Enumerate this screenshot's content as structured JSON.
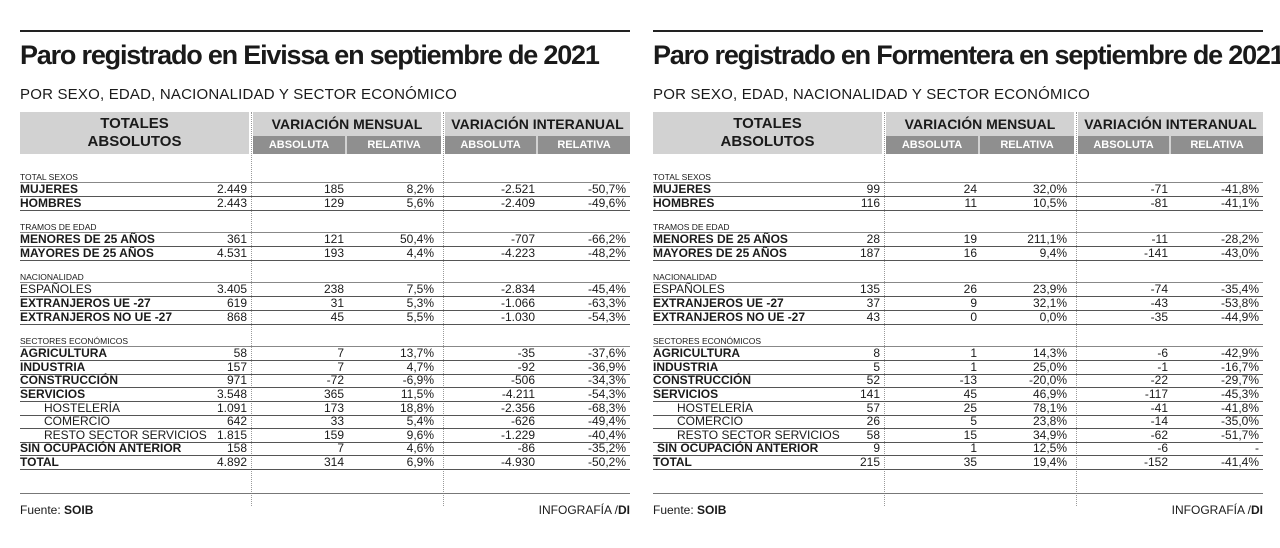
{
  "panels": [
    {
      "title": "Paro registrado en Eivissa en septiembre de 2021",
      "subtitle": "POR SEXO, EDAD, NACIONALIDAD Y SECTOR ECONÓMICO",
      "header": {
        "totales_l1": "TOTALES",
        "totales_l2": "ABSOLUTOS",
        "mensual": "VARIACIÓN MENSUAL",
        "interanual": "VARIACIÓN INTERANUAL",
        "absoluta": "ABSOLUTA",
        "relativa": "RELATIVA"
      },
      "rows": [
        {
          "type": "cat",
          "label": "TOTAL SEXOS"
        },
        {
          "type": "row",
          "style": "bold",
          "label": "MUJERES",
          "v": [
            "2.449",
            "185",
            "8,2%",
            "-2.521",
            "-50,7%"
          ]
        },
        {
          "type": "row",
          "style": "bold",
          "label": "HOMBRES",
          "v": [
            "2.443",
            "129",
            "5,6%",
            "-2.409",
            "-49,6%"
          ]
        },
        {
          "type": "cat",
          "label": "TRAMOS DE EDAD"
        },
        {
          "type": "row",
          "style": "bold",
          "label": "MENORES DE 25 AÑOS",
          "v": [
            "361",
            "121",
            "50,4%",
            "-707",
            "-66,2%"
          ]
        },
        {
          "type": "row",
          "style": "bold",
          "label": "MAYORES DE 25 AÑOS",
          "v": [
            "4.531",
            "193",
            "4,4%",
            "-4.223",
            "-48,2%"
          ]
        },
        {
          "type": "cat",
          "label": "NACIONALIDAD"
        },
        {
          "type": "row",
          "style": "plain",
          "label": "ESPAÑOLES",
          "v": [
            "3.405",
            "238",
            "7,5%",
            "-2.834",
            "-45,4%"
          ]
        },
        {
          "type": "row",
          "style": "bold",
          "label": "EXTRANJEROS UE -27",
          "v": [
            "619",
            "31",
            "5,3%",
            "-1.066",
            "-63,3%"
          ]
        },
        {
          "type": "row",
          "style": "bold",
          "label": "EXTRANJEROS NO UE -27",
          "v": [
            "868",
            "45",
            "5,5%",
            "-1.030",
            "-54,3%"
          ]
        },
        {
          "type": "cat",
          "label": "SECTORES ECONÓMICOS"
        },
        {
          "type": "row",
          "style": "bold",
          "label": "AGRICULTURA",
          "v": [
            "58",
            "7",
            "13,7%",
            "-35",
            "-37,6%"
          ]
        },
        {
          "type": "row",
          "style": "bold",
          "label": "INDUSTRIA",
          "v": [
            "157",
            "7",
            "4,7%",
            "-92",
            "-36,9%"
          ]
        },
        {
          "type": "row",
          "style": "bold",
          "label": "CONSTRUCCIÓN",
          "v": [
            "971",
            "-72",
            "-6,9%",
            "-506",
            "-34,3%"
          ]
        },
        {
          "type": "row",
          "style": "bold",
          "label": "SERVICIOS",
          "v": [
            "3.548",
            "365",
            "11,5%",
            "-4.211",
            "-54,3%"
          ]
        },
        {
          "type": "row",
          "style": "sub",
          "label": "HOSTELERÍA",
          "v": [
            "1.091",
            "173",
            "18,8%",
            "-2.356",
            "-68,3%"
          ]
        },
        {
          "type": "row",
          "style": "sub",
          "label": "COMERCIO",
          "v": [
            "642",
            "33",
            "5,4%",
            "-626",
            "-49,4%"
          ]
        },
        {
          "type": "row",
          "style": "sub",
          "label": "RESTO SECTOR SERVICIOS",
          "v": [
            "1.815",
            "159",
            "9,6%",
            "-1.229",
            "-40,4%"
          ]
        },
        {
          "type": "row",
          "style": "bold",
          "label": "SIN OCUPACIÓN ANTERIOR",
          "v": [
            "158",
            "7",
            "4,6%",
            "-86",
            "-35,2%"
          ]
        },
        {
          "type": "row",
          "style": "bold",
          "label": "TOTAL",
          "v": [
            "4.892",
            "314",
            "6,9%",
            "-4.930",
            "-50,2%"
          ]
        }
      ],
      "footer": {
        "source_label": "Fuente: ",
        "source": "SOIB",
        "credit_label": "INFOGRAFÍA /",
        "credit": "DI"
      }
    },
    {
      "title": "Paro registrado en Formentera en septiembre de 2021",
      "subtitle": "POR SEXO, EDAD, NACIONALIDAD Y SECTOR ECONÓMICO",
      "header": {
        "totales_l1": "TOTALES",
        "totales_l2": "ABSOLUTOS",
        "mensual": "VARIACIÓN MENSUAL",
        "interanual": "VARIACIÓN INTERANUAL",
        "absoluta": "ABSOLUTA",
        "relativa": "RELATIVA"
      },
      "rows": [
        {
          "type": "cat",
          "label": "TOTAL SEXOS"
        },
        {
          "type": "row",
          "style": "bold",
          "label": "MUJERES",
          "v": [
            "99",
            "24",
            "32,0%",
            "-71",
            "-41,8%"
          ]
        },
        {
          "type": "row",
          "style": "bold",
          "label": "HOMBRES",
          "v": [
            "116",
            "11",
            "10,5%",
            "-81",
            "-41,1%"
          ]
        },
        {
          "type": "cat",
          "label": "TRAMOS DE EDAD"
        },
        {
          "type": "row",
          "style": "bold",
          "label": "MENORES DE 25 AÑOS",
          "v": [
            "28",
            "19",
            "211,1%",
            "-11",
            "-28,2%"
          ]
        },
        {
          "type": "row",
          "style": "bold",
          "label": "MAYORES DE 25 AÑOS",
          "v": [
            "187",
            "16",
            "9,4%",
            "-141",
            "-43,0%"
          ]
        },
        {
          "type": "cat",
          "label": "NACIONALIDAD"
        },
        {
          "type": "row",
          "style": "plain",
          "label": "ESPAÑOLES",
          "v": [
            "135",
            "26",
            "23,9%",
            "-74",
            "-35,4%"
          ]
        },
        {
          "type": "row",
          "style": "bold",
          "label": "EXTRANJEROS UE -27",
          "v": [
            "37",
            "9",
            "32,1%",
            "-43",
            "-53,8%"
          ]
        },
        {
          "type": "row",
          "style": "bold",
          "label": "EXTRANJEROS NO UE -27",
          "v": [
            "43",
            "0",
            "0,0%",
            "-35",
            "-44,9%"
          ]
        },
        {
          "type": "cat",
          "label": "SECTORES ECONÓMICOS"
        },
        {
          "type": "row",
          "style": "bold",
          "label": "AGRICULTURA",
          "v": [
            "8",
            "1",
            "14,3%",
            "-6",
            "-42,9%"
          ]
        },
        {
          "type": "row",
          "style": "bold",
          "label": "INDUSTRIA",
          "v": [
            "5",
            "1",
            "25,0%",
            "-1",
            "-16,7%"
          ]
        },
        {
          "type": "row",
          "style": "bold",
          "label": "CONSTRUCCIÓN",
          "v": [
            "52",
            "-13",
            "-20,0%",
            "-22",
            "-29,7%"
          ]
        },
        {
          "type": "row",
          "style": "bold",
          "label": "SERVICIOS",
          "v": [
            "141",
            "45",
            "46,9%",
            "-117",
            "-45,3%"
          ]
        },
        {
          "type": "row",
          "style": "sub",
          "label": "HOSTELERÍA",
          "v": [
            "57",
            "25",
            "78,1%",
            "-41",
            "-41,8%"
          ]
        },
        {
          "type": "row",
          "style": "sub",
          "label": "COMERCIO",
          "v": [
            "26",
            "5",
            "23,8%",
            "-14",
            "-35,0%"
          ]
        },
        {
          "type": "row",
          "style": "sub",
          "label": "RESTO SECTOR SERVICIOS",
          "v": [
            "58",
            "15",
            "34,9%",
            "-62",
            "-51,7%"
          ]
        },
        {
          "type": "row",
          "style": "bold ind",
          "label": "SIN OCUPACIÓN ANTERIOR",
          "v": [
            "9",
            "1",
            "12,5%",
            "-6",
            "-"
          ]
        },
        {
          "type": "row",
          "style": "bold",
          "label": "TOTAL",
          "v": [
            "215",
            "35",
            "19,4%",
            "-152",
            "-41,4%"
          ]
        }
      ],
      "footer": {
        "source_label": "Fuente: ",
        "source": "SOIB",
        "credit_label": "INFOGRAFÍA /",
        "credit": "DI"
      }
    }
  ]
}
